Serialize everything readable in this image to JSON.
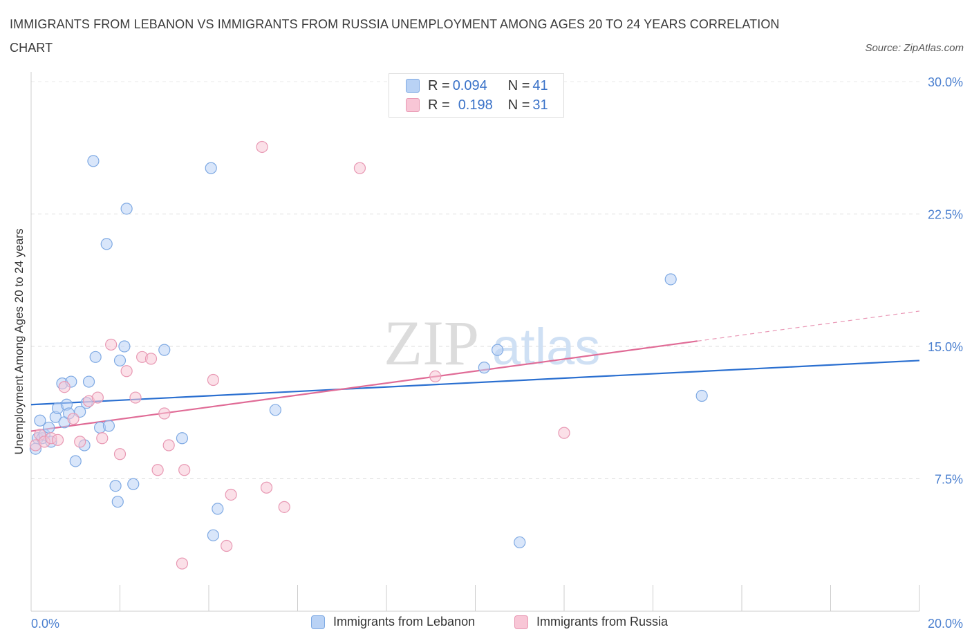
{
  "title": "IMMIGRANTS FROM LEBANON VS IMMIGRANTS FROM RUSSIA UNEMPLOYMENT AMONG AGES 20 TO 24 YEARS CORRELATION CHART",
  "source": "Source: ZipAtlas.com",
  "watermark": {
    "zip": "ZIP",
    "atlas": "atlas"
  },
  "colors": {
    "lebanon_fill": "#b9d2f5",
    "lebanon_stroke": "#7ea9e3",
    "lebanon_line": "#2a6fd0",
    "russia_fill": "#f8c6d6",
    "russia_stroke": "#e898b3",
    "russia_line": "#e06b96",
    "axis_text": "#4a7fcf",
    "grid": "#dddddd"
  },
  "legend_top": {
    "lebanon": {
      "r_label": "R = ",
      "r_value": "0.094",
      "n_label": "N = ",
      "n_value": "41"
    },
    "russia": {
      "r_label": "R = ",
      "r_value": "0.198",
      "n_label": "N = ",
      "n_value": "31"
    }
  },
  "chart_data": {
    "type": "scatter",
    "title": "IMMIGRANTS FROM LEBANON VS IMMIGRANTS FROM RUSSIA UNEMPLOYMENT AMONG AGES 20 TO 24 YEARS CORRELATION CHART",
    "xlabel": "",
    "ylabel": "Unemployment Among Ages 20 to 24 years",
    "xlim": [
      0,
      20
    ],
    "ylim": [
      0,
      30
    ],
    "x_tick_labels": [
      "0.0%",
      "20.0%"
    ],
    "y_ticks": [
      7.5,
      15.0,
      22.5,
      30.0
    ],
    "y_tick_labels": [
      "7.5%",
      "15.0%",
      "22.5%",
      "30.0%"
    ],
    "legend": [
      "Immigrants from Lebanon",
      "Immigrants from Russia"
    ],
    "series": [
      {
        "name": "Immigrants from Lebanon",
        "color": "#7ea9e3",
        "points": [
          [
            0.1,
            9.2
          ],
          [
            0.15,
            9.8
          ],
          [
            0.2,
            10.8
          ],
          [
            0.25,
            9.8
          ],
          [
            0.3,
            10.0
          ],
          [
            0.4,
            10.4
          ],
          [
            0.45,
            9.6
          ],
          [
            0.55,
            11.0
          ],
          [
            0.6,
            11.5
          ],
          [
            0.7,
            12.9
          ],
          [
            0.75,
            10.7
          ],
          [
            0.8,
            11.7
          ],
          [
            0.85,
            11.2
          ],
          [
            0.9,
            13.0
          ],
          [
            1.0,
            8.5
          ],
          [
            1.1,
            11.3
          ],
          [
            1.2,
            9.4
          ],
          [
            1.3,
            13.0
          ],
          [
            1.4,
            25.5
          ],
          [
            1.45,
            14.4
          ],
          [
            1.55,
            10.4
          ],
          [
            1.75,
            10.5
          ],
          [
            1.9,
            7.1
          ],
          [
            1.95,
            6.2
          ],
          [
            2.0,
            14.2
          ],
          [
            2.1,
            15.0
          ],
          [
            2.15,
            22.8
          ],
          [
            2.3,
            7.2
          ],
          [
            3.0,
            14.8
          ],
          [
            3.4,
            9.8
          ],
          [
            4.05,
            25.1
          ],
          [
            4.1,
            4.3
          ],
          [
            4.2,
            5.8
          ],
          [
            5.5,
            11.4
          ],
          [
            1.7,
            20.8
          ],
          [
            10.2,
            13.8
          ],
          [
            10.5,
            14.8
          ],
          [
            11.0,
            3.9
          ],
          [
            14.4,
            18.8
          ],
          [
            15.1,
            12.2
          ],
          [
            1.25,
            11.8
          ]
        ]
      },
      {
        "name": "Immigrants from Russia",
        "color": "#e898b3",
        "points": [
          [
            0.1,
            9.4
          ],
          [
            0.2,
            10.0
          ],
          [
            0.3,
            9.6
          ],
          [
            0.45,
            9.8
          ],
          [
            0.6,
            9.7
          ],
          [
            0.75,
            12.7
          ],
          [
            0.95,
            10.9
          ],
          [
            1.1,
            9.6
          ],
          [
            1.3,
            11.9
          ],
          [
            1.5,
            12.1
          ],
          [
            1.6,
            9.8
          ],
          [
            1.8,
            15.1
          ],
          [
            2.0,
            8.9
          ],
          [
            2.15,
            13.6
          ],
          [
            2.35,
            12.1
          ],
          [
            2.5,
            14.4
          ],
          [
            2.7,
            14.3
          ],
          [
            2.85,
            8.0
          ],
          [
            3.0,
            11.2
          ],
          [
            3.1,
            9.4
          ],
          [
            3.45,
            8.0
          ],
          [
            3.4,
            2.7
          ],
          [
            4.1,
            13.1
          ],
          [
            4.4,
            3.7
          ],
          [
            4.5,
            6.6
          ],
          [
            5.2,
            26.3
          ],
          [
            5.3,
            7.0
          ],
          [
            5.7,
            5.9
          ],
          [
            7.4,
            25.1
          ],
          [
            9.1,
            13.3
          ],
          [
            12.0,
            10.1
          ]
        ]
      }
    ],
    "trend_lines": [
      {
        "name": "Immigrants from Lebanon",
        "x": [
          0,
          20
        ],
        "y": [
          11.7,
          14.2
        ],
        "style": "solid"
      },
      {
        "name": "Immigrants from Russia",
        "x": [
          0,
          15.0
        ],
        "y": [
          10.2,
          15.3
        ],
        "style": "solid",
        "extension": {
          "x": [
            15.0,
            20
          ],
          "y": [
            15.3,
            17.0
          ],
          "style": "dashed"
        }
      }
    ]
  },
  "legend_bottom": {
    "lebanon": "Immigrants from Lebanon",
    "russia": "Immigrants from Russia"
  }
}
